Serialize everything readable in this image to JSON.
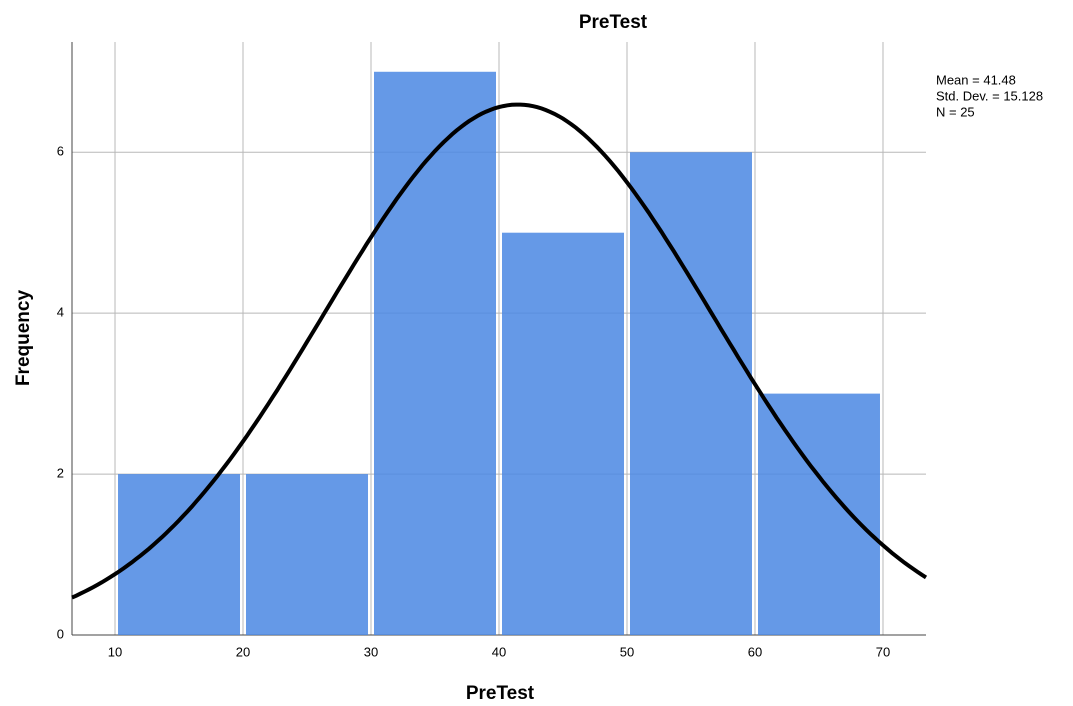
{
  "chart_data": {
    "type": "histogram",
    "title": "PreTest",
    "x_label": "PreTest",
    "y_label": "Frequency",
    "bins": [
      10,
      20,
      30,
      40,
      50,
      60,
      70
    ],
    "counts": [
      2,
      2,
      7,
      5,
      6,
      3
    ],
    "color": "#4a87e3",
    "xlim": [
      6.64,
      73.36
    ],
    "ylim": [
      0,
      7.37
    ],
    "xticks": [
      10,
      20,
      30,
      40,
      50,
      60,
      70
    ],
    "yticks": [
      0,
      2,
      4,
      6
    ],
    "grid": true,
    "normal_curve": {
      "color": "#000000",
      "mean": {
        "value": 41.48,
        "label": "Mean = 41.48"
      },
      "std_dev": {
        "value": 15.128,
        "label": "Std. Dev. = 15.128"
      },
      "n": {
        "value": 25,
        "label": "N = 25"
      }
    }
  }
}
